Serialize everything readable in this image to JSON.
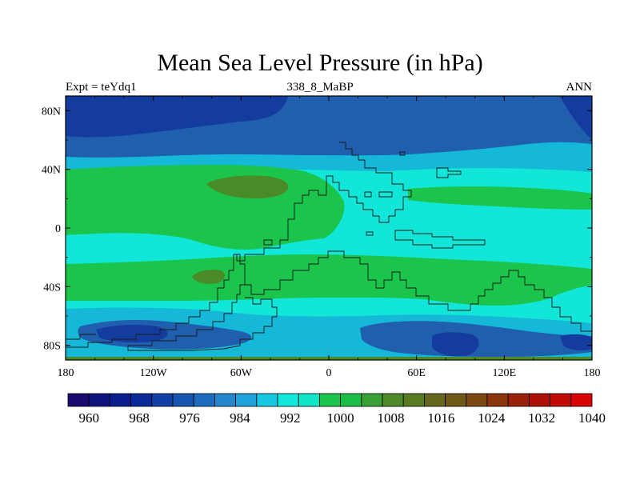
{
  "title": "Mean Sea Level Pressure (in hPa)",
  "subtitle_left": "Expt = teYdq1",
  "subtitle_center": "338_8_MaBP",
  "subtitle_right": "ANN",
  "colors": {
    "c960": "#0a0a6e",
    "c964": "#0d1a8a",
    "c972": "#143c9e",
    "c980": "#1f5fae",
    "c988": "#2c8fd6",
    "c992": "#16b8d8",
    "c996": "#12e6d8",
    "c1004": "#1bc44a",
    "c1012": "#4a8a28",
    "c1016": "#5a6a1e"
  },
  "chart_data": {
    "type": "contour-map",
    "field": "Mean Sea Level Pressure",
    "units": "hPa",
    "xlim": [
      -180,
      180
    ],
    "ylim": [
      -90,
      90
    ],
    "x_ticks": [
      {
        "value": -180,
        "label": "180"
      },
      {
        "value": -120,
        "label": "120W"
      },
      {
        "value": -60,
        "label": "60W"
      },
      {
        "value": 0,
        "label": "0"
      },
      {
        "value": 60,
        "label": "60E"
      },
      {
        "value": 120,
        "label": "120E"
      },
      {
        "value": 180,
        "label": "180"
      }
    ],
    "y_ticks": [
      {
        "value": 80,
        "label": "80N"
      },
      {
        "value": 40,
        "label": "40N"
      },
      {
        "value": 0,
        "label": "0"
      },
      {
        "value": -40,
        "label": "40S"
      },
      {
        "value": -80,
        "label": "80S"
      }
    ],
    "colorbar": {
      "colors": [
        "#1a0a6e",
        "#0f147e",
        "#0c1e8e",
        "#0a2a9a",
        "#1040a6",
        "#1756b0",
        "#1e6cbc",
        "#2486cc",
        "#22a2dc",
        "#18c8e0",
        "#12e8dc",
        "#12e6c8",
        "#1cc44c",
        "#1cbe48",
        "#3aa038",
        "#4e8a2a",
        "#5a7a20",
        "#64681c",
        "#6e5818",
        "#7c4814",
        "#8a3410",
        "#9a220c",
        "#ac1208",
        "#c20a06",
        "#d80404"
      ],
      "tick_labels": [
        "960",
        "968",
        "976",
        "984",
        "992",
        "1000",
        "1008",
        "1016",
        "1024",
        "1032",
        "1040"
      ]
    }
  }
}
